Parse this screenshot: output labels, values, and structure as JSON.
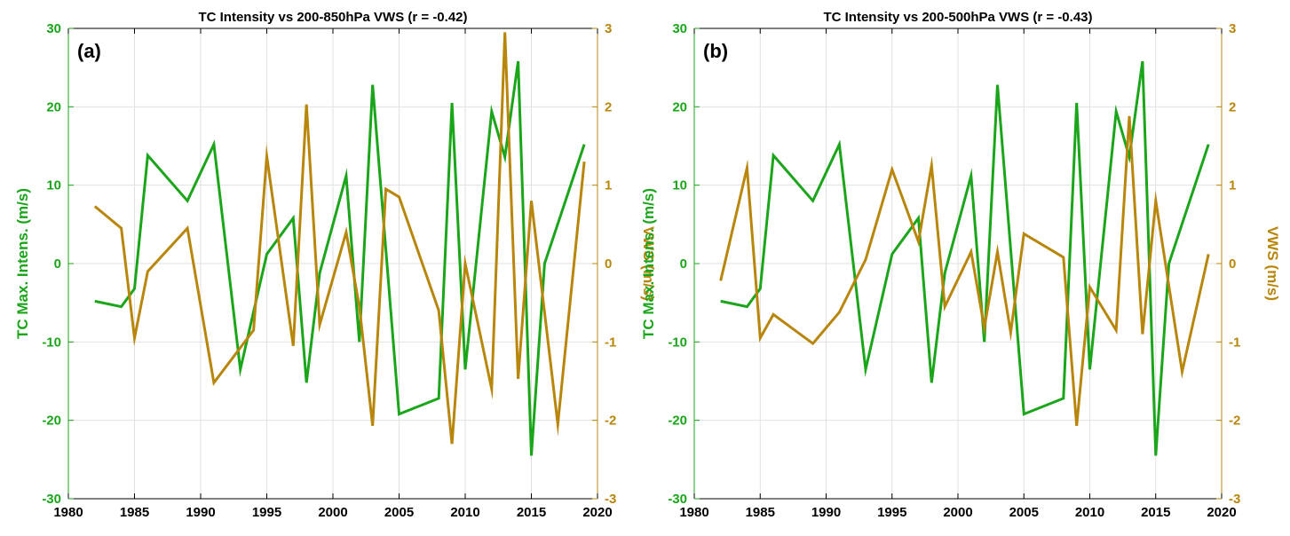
{
  "figure": {
    "colors": {
      "left_axis": "#1aa51a",
      "right_axis": "#b8860b",
      "axes": "#000000",
      "grid": "#e1e1e1"
    }
  },
  "chart_data": [
    {
      "type": "line",
      "panel_label": "(a)",
      "title": "TC Intensity vs 200-850hPa VWS (r = -0.42)",
      "xlabel": "",
      "ylabel_left": "TC Max. Intens. (m/s)",
      "ylabel_right": "VWS (m/s)",
      "xlim": [
        1980,
        2020
      ],
      "ylim_left": [
        -30,
        30
      ],
      "ylim_right": [
        -3,
        3
      ],
      "xticks": [
        "1980",
        "1985",
        "1990",
        "1995",
        "2000",
        "2005",
        "2010",
        "2015",
        "2020"
      ],
      "yticks_left": [
        "-30",
        "-20",
        "-10",
        "0",
        "10",
        "20",
        "30"
      ],
      "yticks_right": [
        "-3",
        "-2",
        "-1",
        "0",
        "1",
        "2",
        "3"
      ],
      "grid": true,
      "series": [
        {
          "name": "TC Max. Intens.",
          "axis": "left",
          "color": "#1aa51a",
          "x": [
            1982,
            1984,
            1985,
            1986,
            1989,
            1991,
            1993,
            1995,
            1997,
            1998,
            1999,
            2001,
            2002,
            2003,
            2005,
            2008,
            2009,
            2010,
            2012,
            2013,
            2014,
            2015,
            2016,
            2019
          ],
          "values": [
            -4.8,
            -5.5,
            -3.2,
            13.8,
            8,
            15.2,
            -13.5,
            1.2,
            5.8,
            -15.2,
            -1.2,
            11.2,
            -10,
            22.8,
            -19.2,
            -17.2,
            20.5,
            -13.5,
            19.4,
            13.6,
            25.8,
            -24.5,
            0,
            15.2
          ]
        },
        {
          "name": "VWS",
          "axis": "right",
          "color": "#b8860b",
          "x": [
            1982,
            1984,
            1985,
            1986,
            1989,
            1991,
            1994,
            1995,
            1997,
            1998,
            1999,
            2001,
            2002,
            2003,
            2004,
            2005,
            2008,
            2009,
            2010,
            2012,
            2013,
            2014,
            2015,
            2017,
            2019
          ],
          "values": [
            0.73,
            0.45,
            -0.95,
            -0.1,
            0.45,
            -1.52,
            -0.85,
            1.37,
            -1.05,
            2.03,
            -0.78,
            0.4,
            -0.55,
            -2.07,
            0.95,
            0.85,
            -0.6,
            -2.3,
            0,
            -1.6,
            2.95,
            -1.47,
            0.8,
            -2.05,
            1.3
          ]
        }
      ]
    },
    {
      "type": "line",
      "panel_label": "(b)",
      "title": "TC Intensity vs 200-500hPa VWS (r = -0.43)",
      "xlabel": "",
      "ylabel_left": "TC Max. Intens. (m/s)",
      "ylabel_right": "VWS (m/s)",
      "xlim": [
        1980,
        2020
      ],
      "ylim_left": [
        -30,
        30
      ],
      "ylim_right": [
        -3,
        3
      ],
      "xticks": [
        "1980",
        "1985",
        "1990",
        "1995",
        "2000",
        "2005",
        "2010",
        "2015",
        "2020"
      ],
      "yticks_left": [
        "-30",
        "-20",
        "-10",
        "0",
        "10",
        "20",
        "30"
      ],
      "yticks_right": [
        "-3",
        "-2",
        "-1",
        "0",
        "1",
        "2",
        "3"
      ],
      "grid": true,
      "series": [
        {
          "name": "TC Max. Intens.",
          "axis": "left",
          "color": "#1aa51a",
          "x": [
            1982,
            1984,
            1985,
            1986,
            1989,
            1991,
            1993,
            1995,
            1997,
            1998,
            1999,
            2001,
            2002,
            2003,
            2005,
            2008,
            2009,
            2010,
            2012,
            2013,
            2014,
            2015,
            2016,
            2019
          ],
          "values": [
            -4.8,
            -5.5,
            -3.2,
            13.8,
            8,
            15.2,
            -13.5,
            1.2,
            5.8,
            -15.2,
            -1.2,
            11.2,
            -10,
            22.8,
            -19.2,
            -17.2,
            20.5,
            -13.5,
            19.4,
            13.6,
            25.8,
            -24.5,
            0,
            15.2
          ]
        },
        {
          "name": "VWS",
          "axis": "right",
          "color": "#b8860b",
          "x": [
            1982,
            1984,
            1985,
            1986,
            1989,
            1991,
            1993,
            1995,
            1997,
            1998,
            1999,
            2001,
            2002,
            2003,
            2004,
            2005,
            2008,
            2009,
            2010,
            2012,
            2013,
            2014,
            2015,
            2017,
            2019
          ],
          "values": [
            -0.22,
            1.22,
            -0.95,
            -0.65,
            -1.02,
            -0.62,
            0.05,
            1.2,
            0.28,
            1.25,
            -0.55,
            0.15,
            -0.82,
            0.15,
            -0.88,
            0.38,
            0.08,
            -2.07,
            -0.3,
            -0.85,
            1.88,
            -0.9,
            0.8,
            -1.38,
            0.12
          ]
        }
      ]
    }
  ]
}
